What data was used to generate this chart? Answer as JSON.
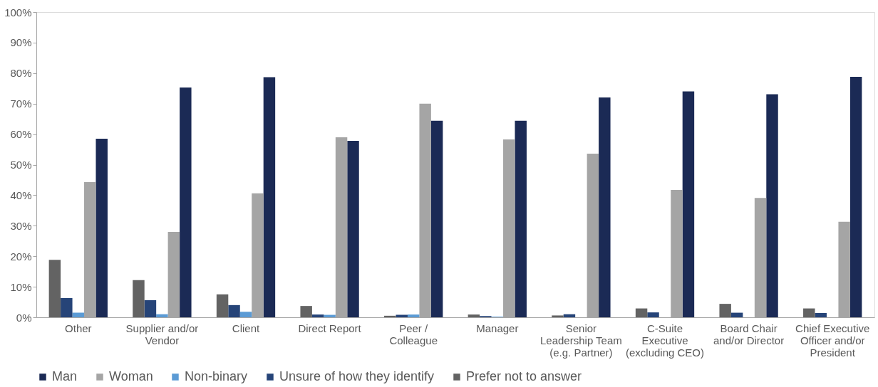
{
  "chart_data": {
    "type": "bar",
    "categories": [
      "Other",
      "Supplier and/or Vendor",
      "Client",
      "Direct Report",
      "Peer / Colleague",
      "Manager",
      "Senior Leadership Team (e.g. Partner)",
      "C-Suite Executive (excluding CEO)",
      "Board Chair and/or Director",
      "Chief Executive Officer and/or President"
    ],
    "series": [
      {
        "name": "Man",
        "color": "#1b2a55",
        "values": [
          58.5,
          75.3,
          78.7,
          57.8,
          64.4,
          64.4,
          72.0,
          74.0,
          73.1,
          78.8
        ]
      },
      {
        "name": "Woman",
        "color": "#a5a5a5",
        "values": [
          44.3,
          28.0,
          40.6,
          59.0,
          70.0,
          58.3,
          53.6,
          41.7,
          39.1,
          31.3
        ]
      },
      {
        "name": "Non-binary",
        "color": "#5b9bd5",
        "values": [
          1.5,
          1.0,
          1.8,
          0.8,
          0.9,
          0.2,
          null,
          0,
          0,
          0
        ]
      },
      {
        "name": "Unsure of how they identify",
        "color": "#264478",
        "values": [
          6.3,
          5.6,
          4.0,
          0.9,
          0.8,
          0.4,
          1.0,
          1.6,
          1.5,
          1.4
        ]
      },
      {
        "name": "Prefer not to answer",
        "color": "#636363",
        "values": [
          18.8,
          12.2,
          7.5,
          3.7,
          0.5,
          0.9,
          0.6,
          2.9,
          4.4,
          2.9
        ]
      }
    ],
    "ylim": [
      0,
      100
    ],
    "yticks": [
      {
        "value": 0,
        "label": "0%"
      },
      {
        "value": 10,
        "label": "10%"
      },
      {
        "value": 20,
        "label": "20%"
      },
      {
        "value": 30,
        "label": "30%"
      },
      {
        "value": 40,
        "label": "40%"
      },
      {
        "value": 50,
        "label": "50%"
      },
      {
        "value": 60,
        "label": "60%"
      },
      {
        "value": 70,
        "label": "70%"
      },
      {
        "value": 80,
        "label": "80%"
      },
      {
        "value": 90,
        "label": "90%"
      },
      {
        "value": 100,
        "label": "100%"
      }
    ],
    "grid": false,
    "legend": "bottom"
  }
}
